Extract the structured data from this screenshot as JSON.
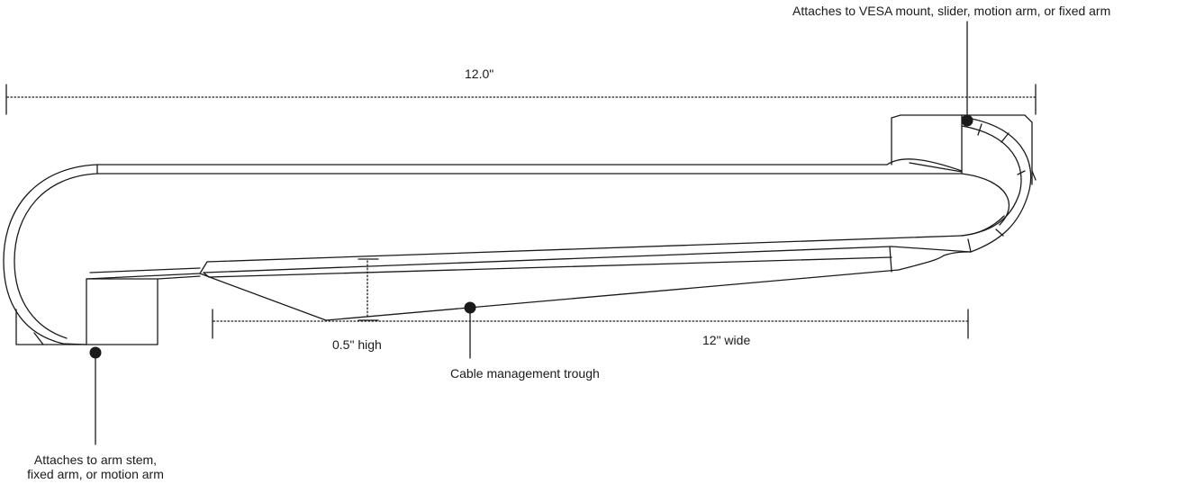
{
  "dimensions": {
    "overall_length": "12.0\"",
    "trough_height": "0.5\" high",
    "trough_width": "12\" wide"
  },
  "callouts": {
    "top_mount": "Attaches to VESA mount, slider, motion arm, or fixed arm",
    "bottom_mount_line1": "Attaches to arm stem,",
    "bottom_mount_line2": "fixed arm, or motion arm",
    "trough": "Cable management trough"
  },
  "colors": {
    "line": "#1a1a1a",
    "background": "#ffffff"
  }
}
